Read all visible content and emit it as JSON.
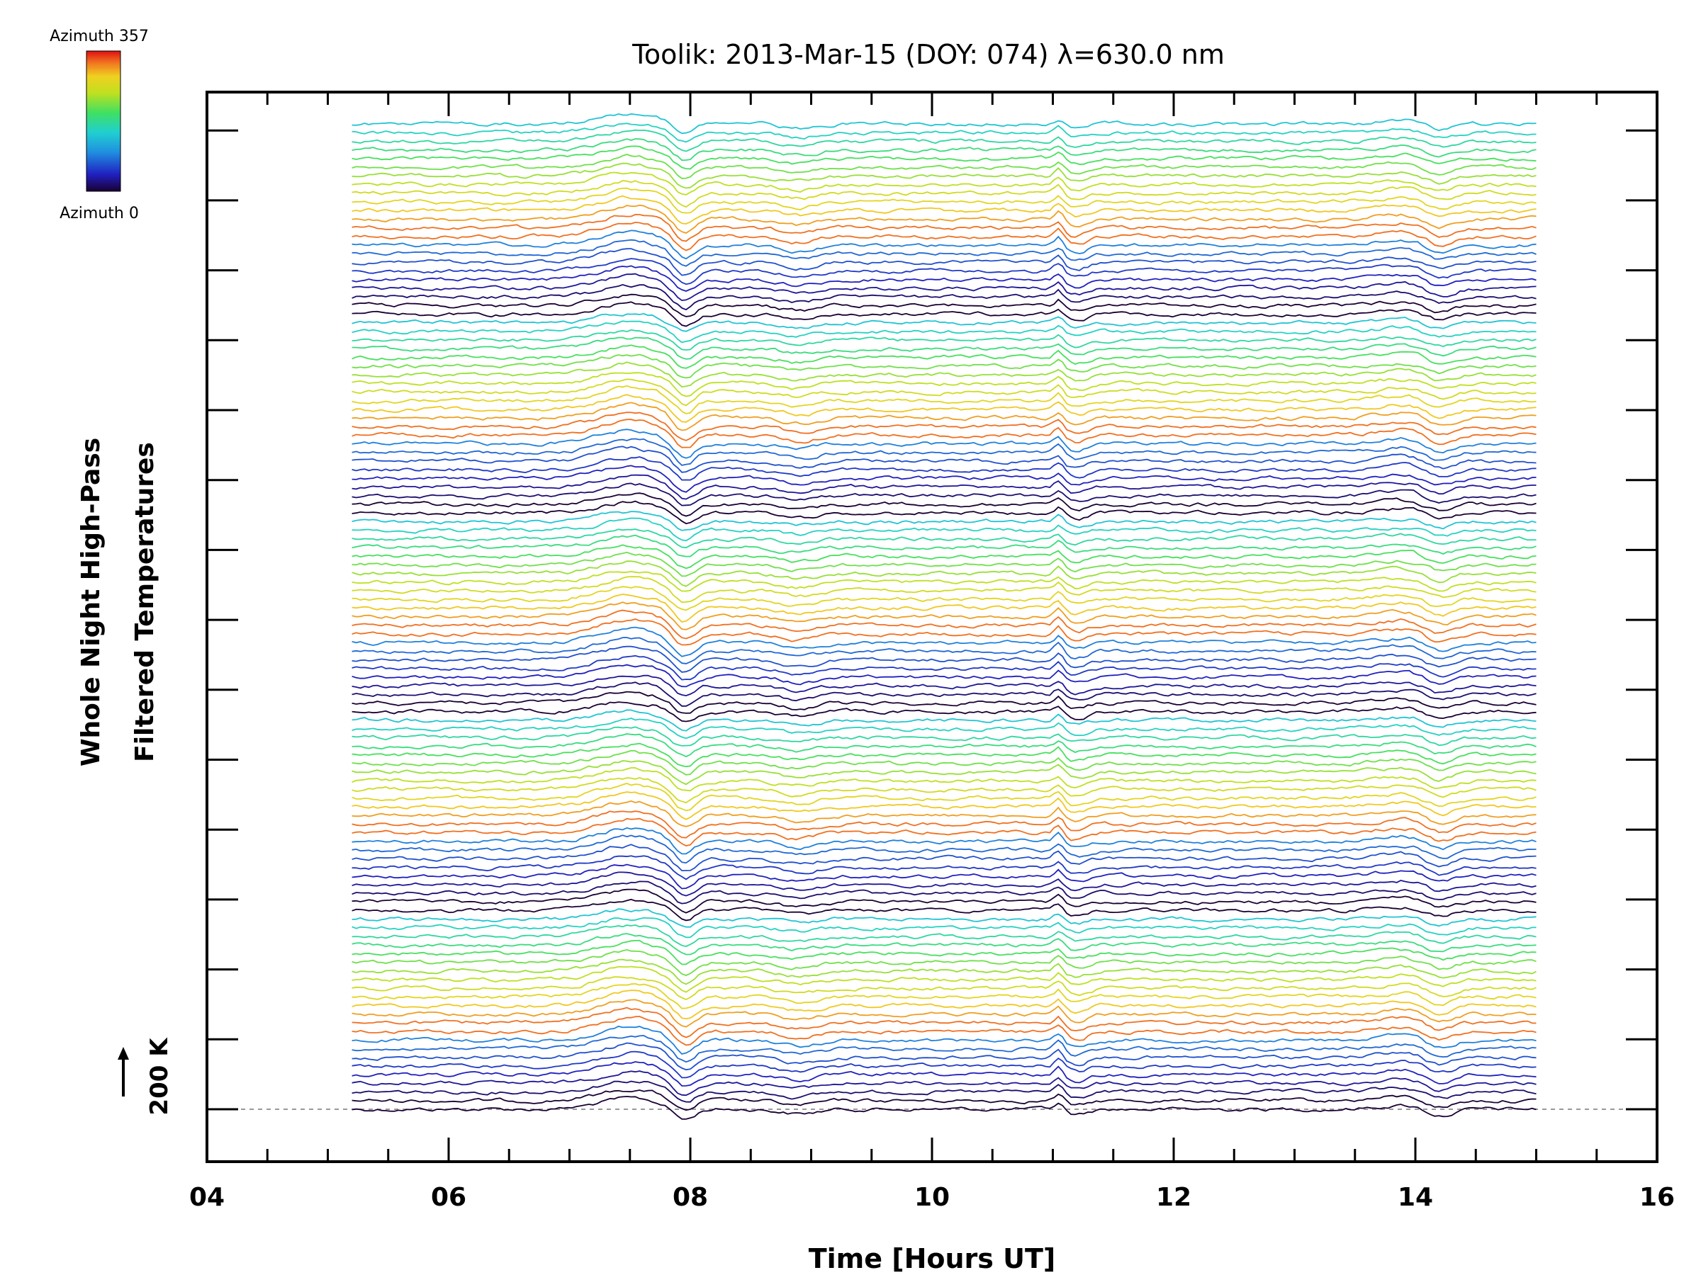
{
  "chart_data": {
    "type": "line",
    "title": "Toolik: 2013-Mar-15 (DOY: 074) λ=630.0 nm",
    "xlabel": "Time [Hours UT]",
    "ylabel_line1": "Whole Night High-Pass",
    "ylabel_line2": "Filtered Temperatures",
    "xlim": [
      4,
      16
    ],
    "x_ticks": [
      "04",
      "06",
      "08",
      "10",
      "12",
      "14",
      "16"
    ],
    "x_start": 5.2,
    "x_end": 15.0,
    "scale_bar_label": "200 K",
    "colorbar": {
      "top_label": "Azimuth 357",
      "bottom_label": "Azimuth 0",
      "min": 0,
      "max": 357
    },
    "series_count": 115,
    "series_note": "stacked traces of filtered temperature vs time, one per look direction, colored by azimuth",
    "features": [
      {
        "time": 7.5,
        "kind": "bump"
      },
      {
        "time": 7.8,
        "kind": "sharp drop"
      },
      {
        "time": 8.9,
        "kind": "dip"
      },
      {
        "time": 11.1,
        "kind": "spike"
      },
      {
        "time": 14.2,
        "kind": "dip"
      }
    ]
  }
}
